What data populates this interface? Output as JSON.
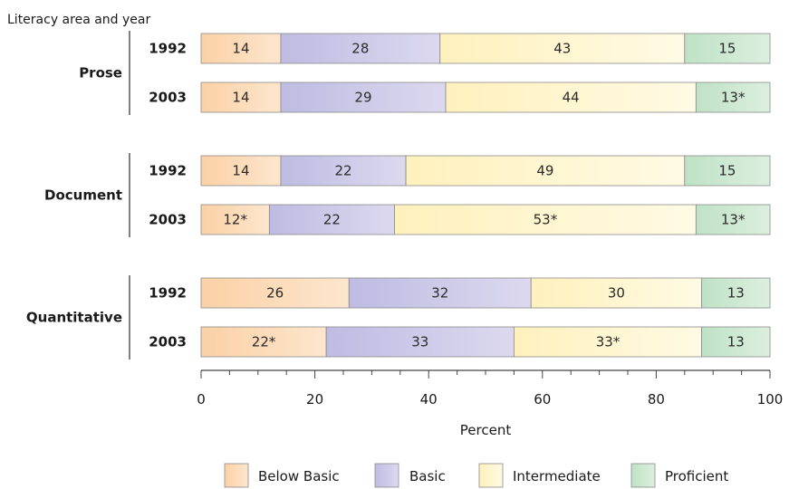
{
  "chart_data": {
    "type": "bar",
    "orientation": "horizontal",
    "stacked": true,
    "y_title": "Literacy area and year",
    "xlabel": "Percent",
    "xlim": [
      0,
      100
    ],
    "xticks": [
      "0",
      "20",
      "40",
      "60",
      "80",
      "100"
    ],
    "legend_position": "bottom",
    "series": [
      {
        "name": "Below Basic",
        "color": "#fbd7b3"
      },
      {
        "name": "Basic",
        "color": "#c8c5e6"
      },
      {
        "name": "Intermediate",
        "color": "#fff4c8"
      },
      {
        "name": "Proficient",
        "color": "#c7e6cc"
      }
    ],
    "groups": [
      {
        "area": "Prose",
        "bars": [
          {
            "year": "1992",
            "values": [
              14,
              28,
              43,
              15
            ],
            "labels": [
              "14",
              "28",
              "43",
              "15"
            ]
          },
          {
            "year": "2003",
            "values": [
              14,
              29,
              44,
              13
            ],
            "labels": [
              "14",
              "29",
              "44",
              "13*"
            ]
          }
        ]
      },
      {
        "area": "Document",
        "bars": [
          {
            "year": "1992",
            "values": [
              14,
              22,
              49,
              15
            ],
            "labels": [
              "14",
              "22",
              "49",
              "15"
            ]
          },
          {
            "year": "2003",
            "values": [
              12,
              22,
              53,
              13
            ],
            "labels": [
              "12*",
              "22",
              "53*",
              "13*"
            ]
          }
        ]
      },
      {
        "area": "Quantitative",
        "bars": [
          {
            "year": "1992",
            "values": [
              26,
              32,
              30,
              13
            ],
            "labels": [
              "26",
              "32",
              "30",
              "13"
            ]
          },
          {
            "year": "2003",
            "values": [
              22,
              33,
              33,
              13
            ],
            "labels": [
              "22*",
              "33",
              "33*",
              "13"
            ]
          }
        ]
      }
    ]
  }
}
